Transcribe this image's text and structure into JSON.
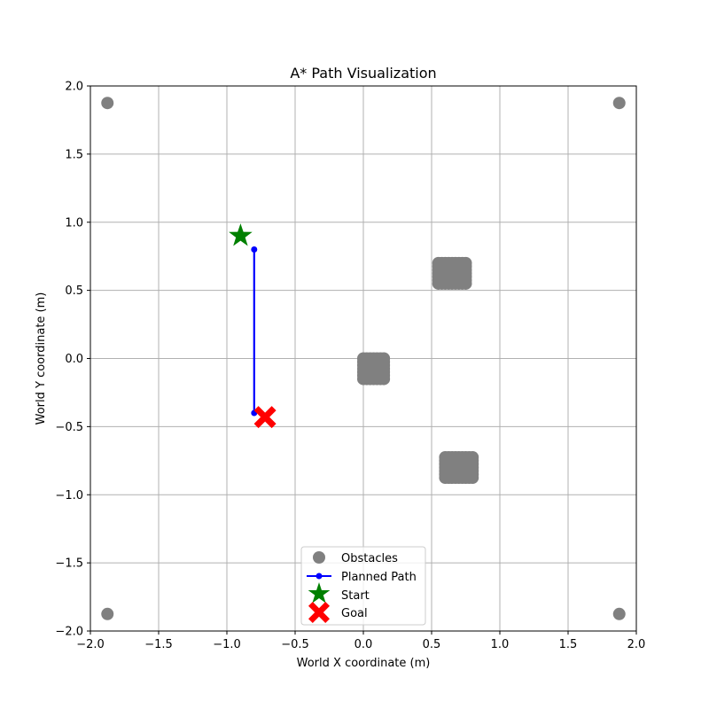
{
  "chart_data": {
    "type": "scatter",
    "title": "A* Path Visualization",
    "xlabel": "World X coordinate (m)",
    "ylabel": "World Y coordinate (m)",
    "xlim": [
      -2.0,
      2.0
    ],
    "ylim": [
      -2.0,
      2.0
    ],
    "xticks": [
      -2.0,
      -1.5,
      -1.0,
      -0.5,
      0.0,
      0.5,
      1.0,
      1.5,
      2.0
    ],
    "yticks": [
      -2.0,
      -1.5,
      -1.0,
      -0.5,
      0.0,
      0.5,
      1.0,
      1.5,
      2.0
    ],
    "xtick_labels": [
      "−2.0",
      "−1.5",
      "−1.0",
      "−0.5",
      "0.0",
      "0.5",
      "1.0",
      "1.5",
      "2.0"
    ],
    "ytick_labels": [
      "−2.0",
      "−1.5",
      "−1.0",
      "−0.5",
      "0.0",
      "0.5",
      "1.0",
      "1.5",
      "2.0"
    ],
    "grid": true,
    "legend_position": "lower-center",
    "series": [
      {
        "name": "Obstacles",
        "kind": "scatter",
        "color": "#808080",
        "marker": "circle",
        "corner_points": [
          [
            -1.875,
            1.875
          ],
          [
            1.875,
            1.875
          ],
          [
            -1.875,
            -1.875
          ],
          [
            1.875,
            -1.875
          ]
        ],
        "clusters": [
          {
            "x_range": [
              0.0,
              0.15
            ],
            "y_range": [
              -0.15,
              0.0
            ]
          },
          {
            "x_range": [
              0.55,
              0.75
            ],
            "y_range": [
              0.55,
              0.7
            ]
          },
          {
            "x_range": [
              0.6,
              0.8
            ],
            "y_range": [
              -0.875,
              -0.725
            ]
          }
        ]
      },
      {
        "name": "Planned Path",
        "kind": "line",
        "color": "#0000ff",
        "marker": "circle",
        "points": [
          [
            -0.8,
            0.8
          ],
          [
            -0.8,
            -0.4
          ]
        ]
      },
      {
        "name": "Start",
        "kind": "scatter",
        "color": "#008000",
        "marker": "star",
        "points": [
          [
            -0.9,
            0.9
          ]
        ]
      },
      {
        "name": "Goal",
        "kind": "scatter",
        "color": "#ff0000",
        "marker": "x",
        "points": [
          [
            -0.72,
            -0.43
          ]
        ]
      }
    ]
  }
}
